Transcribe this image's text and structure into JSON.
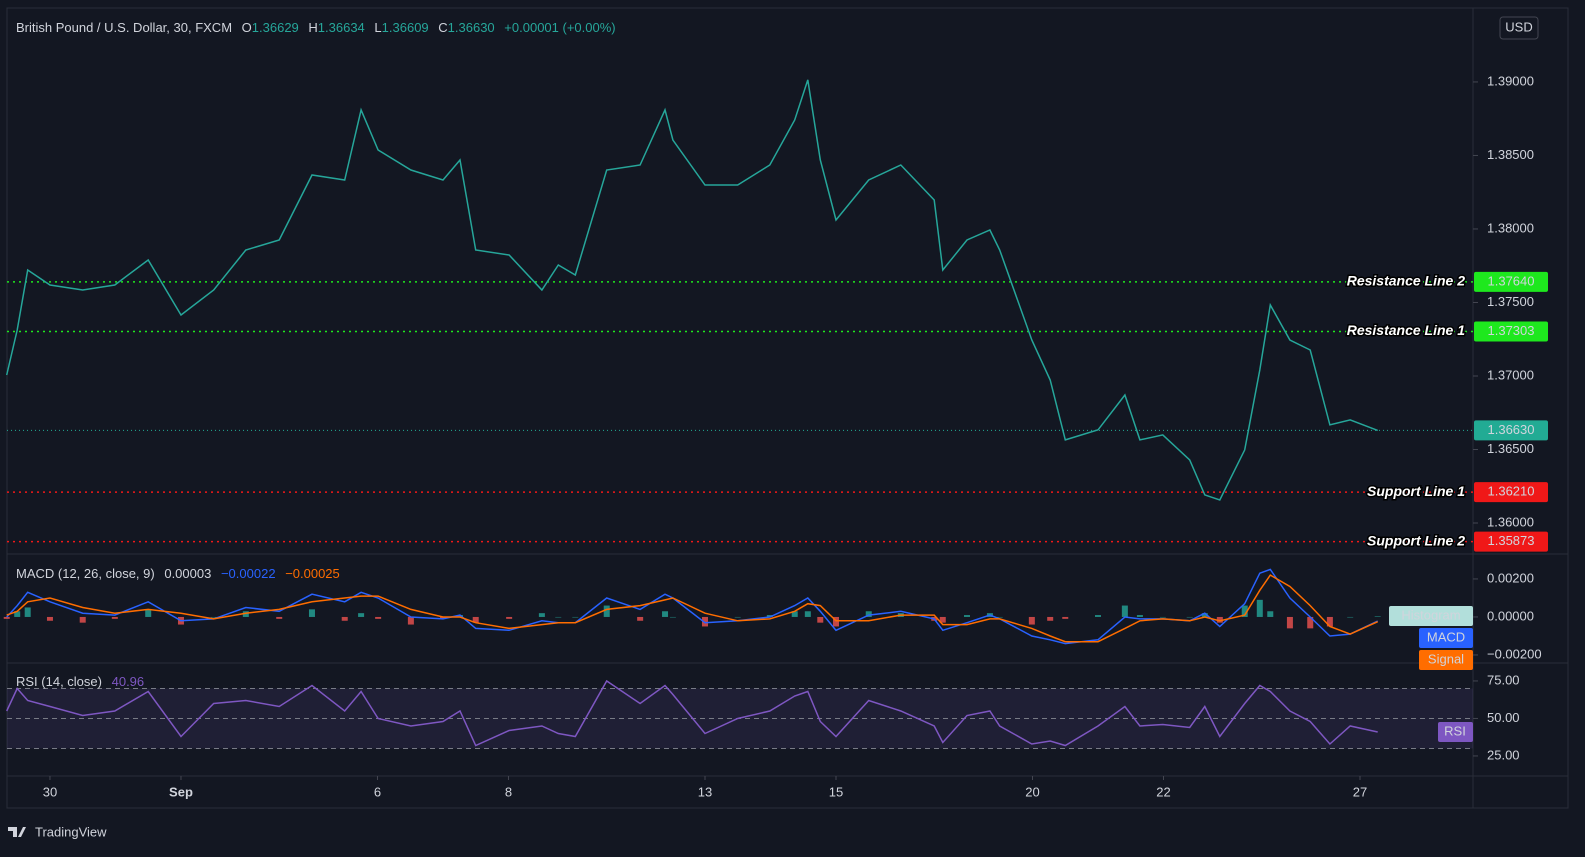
{
  "chart_data": [
    {
      "type": "line",
      "title": "British Pound / U.S. Dollar, 30, FXCM",
      "ohlc": [
        {
          "name": "O",
          "value": "1.36629"
        },
        {
          "name": "H",
          "value": "1.36634"
        },
        {
          "name": "L",
          "value": "1.36609"
        },
        {
          "name": "C",
          "value": "1.36630"
        }
      ],
      "change": "+0.00001 (+0.00%)",
      "currency": "USD",
      "x": [
        -0.66,
        -0.5,
        -0.34,
        0,
        0.5,
        0.99,
        1.5,
        2,
        2.5,
        2.99,
        3.5,
        4,
        4.5,
        4.75,
        5.01,
        5.51,
        6,
        6.26,
        6.5,
        7.01,
        7.51,
        7.76,
        8.02,
        8.5,
        9.01,
        9.39,
        9.51,
        10,
        10.5,
        10.99,
        11.37,
        11.57,
        11.76,
        12,
        12.5,
        12.99,
        13.5,
        13.63,
        14,
        14.35,
        14.5,
        14.99,
        15.27,
        15.5,
        16,
        16.41,
        16.64,
        16.99,
        17.4,
        17.63,
        17.86,
        18.24,
        18.47,
        18.63,
        18.93,
        19.24,
        19.54,
        19.85,
        20.27
      ],
      "xlim": [
        -0.656,
        21.725
      ],
      "xticks": [
        {
          "value": 0,
          "label": "30"
        },
        {
          "value": 2,
          "label": "Sep"
        },
        {
          "value": 5,
          "label": "6"
        },
        {
          "value": 7,
          "label": "8"
        },
        {
          "value": 10,
          "label": "13"
        },
        {
          "value": 12,
          "label": "15"
        },
        {
          "value": 15,
          "label": "20"
        },
        {
          "value": 17,
          "label": "22"
        },
        {
          "value": 20,
          "label": "27"
        }
      ],
      "ylim": [
        1.35796,
        1.39503
      ],
      "yticks": [
        {
          "value": 1.36,
          "label": "1.36000"
        },
        {
          "value": 1.365,
          "label": "1.36500"
        },
        {
          "value": 1.37,
          "label": "1.37000"
        },
        {
          "value": 1.375,
          "label": "1.37500"
        },
        {
          "value": 1.38,
          "label": "1.38000"
        },
        {
          "value": 1.385,
          "label": "1.38500"
        },
        {
          "value": 1.39,
          "label": "1.39000"
        }
      ],
      "series": [
        {
          "color": "#26a69a",
          "values": [
            1.37007,
            1.37313,
            1.37721,
            1.37619,
            1.37585,
            1.37619,
            1.37789,
            1.37415,
            1.37585,
            1.37857,
            1.37925,
            1.38367,
            1.38333,
            1.3881,
            1.38537,
            1.38401,
            1.38333,
            1.38469,
            1.37857,
            1.37823,
            1.37585,
            1.37755,
            1.37687,
            1.38401,
            1.38435,
            1.3881,
            1.38605,
            1.38299,
            1.38299,
            1.38435,
            1.38741,
            1.39014,
            1.38469,
            1.38061,
            1.38333,
            1.38435,
            1.38197,
            1.37721,
            1.37925,
            1.37993,
            1.37857,
            1.37245,
            1.36973,
            1.36565,
            1.36633,
            1.36871,
            1.36565,
            1.36599,
            1.36429,
            1.36191,
            1.36157,
            1.36497,
            1.37041,
            1.37483,
            1.37245,
            1.37177,
            1.36667,
            1.36701,
            1.3663
          ]
        }
      ],
      "levels": [
        {
          "label": "Resistance Line 2",
          "value": 1.3764,
          "value_label": "1.37640",
          "color": "#1ee81e",
          "text_color": "#000000"
        },
        {
          "label": "Resistance Line 1",
          "value": 1.37303,
          "value_label": "1.37303",
          "color": "#1ee81e",
          "text_color": "#000000"
        },
        {
          "label": "Support Line 1",
          "value": 1.3621,
          "value_label": "1.36210",
          "color": "#f01818",
          "text_color": "#ffffff"
        },
        {
          "label": "Support Line 2",
          "value": 1.35873,
          "value_label": "1.35873",
          "color": "#f01818",
          "text_color": "#ffffff"
        }
      ],
      "last_price": {
        "value": 1.3663,
        "label": "1.36630",
        "color": "#22ab94"
      }
    },
    {
      "type": "macd",
      "title": "MACD (12, 26, close, 9)",
      "ylim": [
        -0.00237,
        0.00326
      ],
      "yticks": [
        {
          "value": -0.002,
          "label": "−0.00200"
        },
        {
          "value": 0,
          "label": "0.00000"
        },
        {
          "value": 0.002,
          "label": "0.00200"
        }
      ],
      "series": [
        {
          "name": "Histogram",
          "current": "0.00003",
          "color": "#26a69a",
          "down_color": "#ef5350",
          "label_color": "#b2dfdb",
          "values": [
            -0.0001,
            0.0003,
            0.0005,
            -0.0002,
            -0.0003,
            -0.0001,
            0.0004,
            -0.0004,
            0,
            0.0003,
            -0.0001,
            0.0004,
            -0.0002,
            0.0002,
            -0.0001,
            -0.0004,
            -0.0001,
            0.0001,
            -0.0003,
            -0.0001,
            0.0002,
            0,
            0,
            0.0006,
            -0.0002,
            0.0003,
            0,
            -0.0005,
            0,
            0.0001,
            0.0003,
            0.0003,
            -0.0003,
            -0.0005,
            0.0003,
            0.0002,
            -0.0002,
            -0.0003,
            0.0001,
            0.0002,
            0,
            -0.0004,
            -0.0002,
            -0.0001,
            0.0001,
            0.0006,
            0.0001,
            0,
            0,
            0.0002,
            -0.0003,
            0.0006,
            0.0009,
            0.0003,
            -0.0006,
            -0.0006,
            -0.0005,
            0,
            3e-05
          ]
        },
        {
          "name": "MACD",
          "current": "−0.00022",
          "color": "#2962ff",
          "values": [
            0,
            0.0006,
            0.0013,
            0.0008,
            0.0002,
            0.0001,
            0.0008,
            -0.0002,
            -0.0001,
            0.0005,
            0.0003,
            0.0012,
            0.0008,
            0.0013,
            0.001,
            0,
            -0.0001,
            0.0001,
            -0.0006,
            -0.0007,
            -0.0002,
            -0.0003,
            -0.0003,
            0.001,
            0.0004,
            0.0012,
            0.001,
            -0.0003,
            -0.0002,
            0,
            0.0006,
            0.001,
            0.0003,
            -0.0007,
            0.0001,
            0.0003,
            -0.0001,
            -0.0007,
            -0.0003,
            0.0001,
            -0.0001,
            -0.001,
            -0.0012,
            -0.0014,
            -0.0012,
            0,
            -0.0001,
            -0.0001,
            -0.0002,
            0.0002,
            -0.0005,
            0.0007,
            0.0023,
            0.0025,
            0.001,
            0,
            -0.001,
            -0.0009,
            -0.00022
          ]
        },
        {
          "name": "Signal",
          "current": "−0.00025",
          "color": "#ff6d00",
          "values": [
            0.0001,
            0.0003,
            0.0008,
            0.001,
            0.0005,
            0.0002,
            0.0004,
            0.0002,
            -0.0001,
            0.0002,
            0.0004,
            0.0008,
            0.001,
            0.0011,
            0.0011,
            0.0004,
            0,
            0,
            -0.0003,
            -0.0006,
            -0.0004,
            -0.0003,
            -0.0003,
            0.0004,
            0.0006,
            0.0009,
            0.001,
            0.0002,
            -0.0002,
            -0.0001,
            0.0003,
            0.0007,
            0.0006,
            -0.0002,
            -0.0002,
            0.0001,
            0.0001,
            -0.0004,
            -0.0004,
            -0.0001,
            -0.0001,
            -0.0006,
            -0.001,
            -0.0013,
            -0.0013,
            -0.0006,
            -0.0002,
            -0.0001,
            -0.0002,
            0,
            -0.0002,
            0.0001,
            0.0014,
            0.0022,
            0.0016,
            0.0006,
            -0.0005,
            -0.0009,
            -0.00025
          ]
        }
      ]
    },
    {
      "type": "line",
      "title": "RSI (14, close)",
      "ylim": [
        12.3,
        86.3
      ],
      "yticks": [
        {
          "value": 25,
          "label": "25.00"
        },
        {
          "value": 50,
          "label": "50.00"
        },
        {
          "value": 75,
          "label": "75.00"
        }
      ],
      "levels": [
        30,
        50,
        70
      ],
      "band_color": "#7e57c2",
      "series": [
        {
          "name": "RSI",
          "current": "40.96",
          "color": "#7e57c2",
          "values": [
            55,
            70,
            62,
            58,
            52,
            55,
            68,
            38,
            60,
            62,
            58,
            72,
            55,
            68,
            50,
            45,
            48,
            55,
            32,
            42,
            45,
            40,
            38,
            75,
            60,
            72,
            66,
            40,
            50,
            55,
            65,
            68,
            48,
            38,
            62,
            55,
            45,
            34,
            52,
            55,
            45,
            33,
            35,
            32,
            45,
            58,
            45,
            46,
            44,
            58,
            38,
            60,
            72,
            68,
            55,
            48,
            33,
            45,
            40.96
          ]
        }
      ]
    }
  ]
}
